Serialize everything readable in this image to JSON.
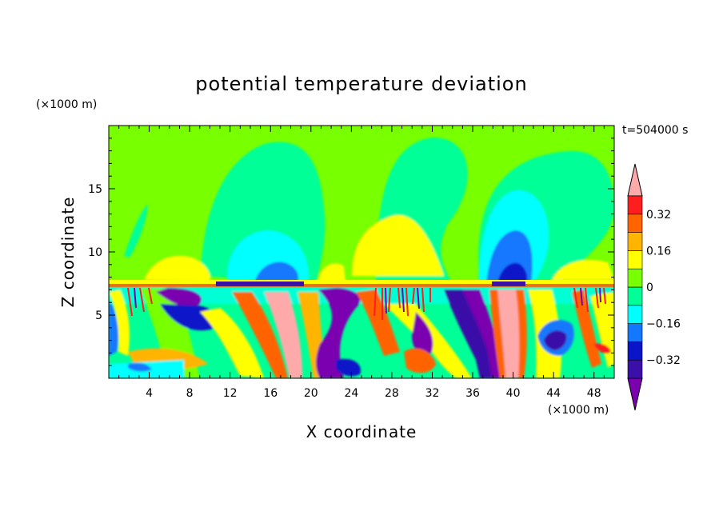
{
  "chart_data": {
    "type": "heatmap",
    "title": "potential temperature deviation",
    "time_label": "t=504000 s",
    "xlabel": "X coordinate",
    "ylabel": "Z coordinate",
    "x_unit": "(×1000 m)",
    "y_unit": "(×1000 m)",
    "xlim": [
      0,
      50
    ],
    "ylim": [
      0,
      20
    ],
    "x_ticks": [
      4,
      8,
      12,
      16,
      20,
      24,
      28,
      32,
      36,
      40,
      44,
      48
    ],
    "y_ticks": [
      5,
      10,
      15
    ],
    "colorbar": {
      "levels": [
        -0.4,
        -0.32,
        -0.24,
        -0.16,
        -0.08,
        0,
        0.08,
        0.16,
        0.24,
        0.32,
        0.4
      ],
      "tick_labels": [
        "0.32",
        "0.16",
        "0",
        "−0.16",
        "−0.32"
      ],
      "tick_values": [
        0.32,
        0.16,
        0,
        -0.16,
        -0.32
      ],
      "colors": [
        "#7a00b0",
        "#3a10a8",
        "#0a14c8",
        "#1478ff",
        "#00ffff",
        "#00ff96",
        "#78ff00",
        "#ffff00",
        "#ffb400",
        "#ff6400",
        "#ff1e1e",
        "#ffaaaa"
      ]
    }
  }
}
